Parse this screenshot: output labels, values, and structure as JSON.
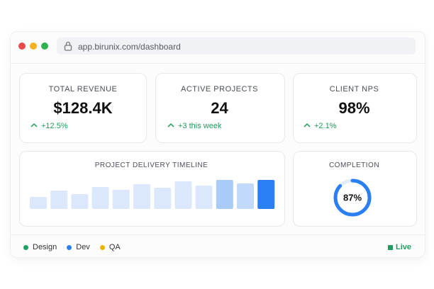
{
  "browser": {
    "url": "app.birunix.com/dashboard"
  },
  "kpis": [
    {
      "label": "TOTAL REVENUE",
      "value": "$128.4K",
      "change": "+12.5%"
    },
    {
      "label": "ACTIVE PROJECTS",
      "value": "24",
      "change": "+3 this week"
    },
    {
      "label": "CLIENT NPS",
      "value": "98%",
      "change": "+2.1%"
    }
  ],
  "timeline": {
    "title": "PROJECT DELIVERY TIMELINE",
    "values": [
      17,
      26,
      21,
      31,
      27,
      35,
      30,
      39,
      33,
      41,
      36,
      41
    ],
    "colors": [
      "#dbe8fb",
      "#dbe8fb",
      "#dbe8fb",
      "#dbe8fb",
      "#dbe8fb",
      "#dbe8fb",
      "#dbe8fb",
      "#dbe8fb",
      "#dbe8fb",
      "#a9cbf7",
      "#c2dafa",
      "#2b7ff5"
    ]
  },
  "completion": {
    "title": "COMPLETION",
    "value": 87,
    "value_label": "87%",
    "color": "#2b7ff5"
  },
  "legend": [
    {
      "name": "Design",
      "color": "#1aa260"
    },
    {
      "name": "Dev",
      "color": "#2b7ff5"
    },
    {
      "name": "QA",
      "color": "#f0b400"
    }
  ],
  "status": {
    "label": "Live",
    "color": "#1aa260"
  }
}
